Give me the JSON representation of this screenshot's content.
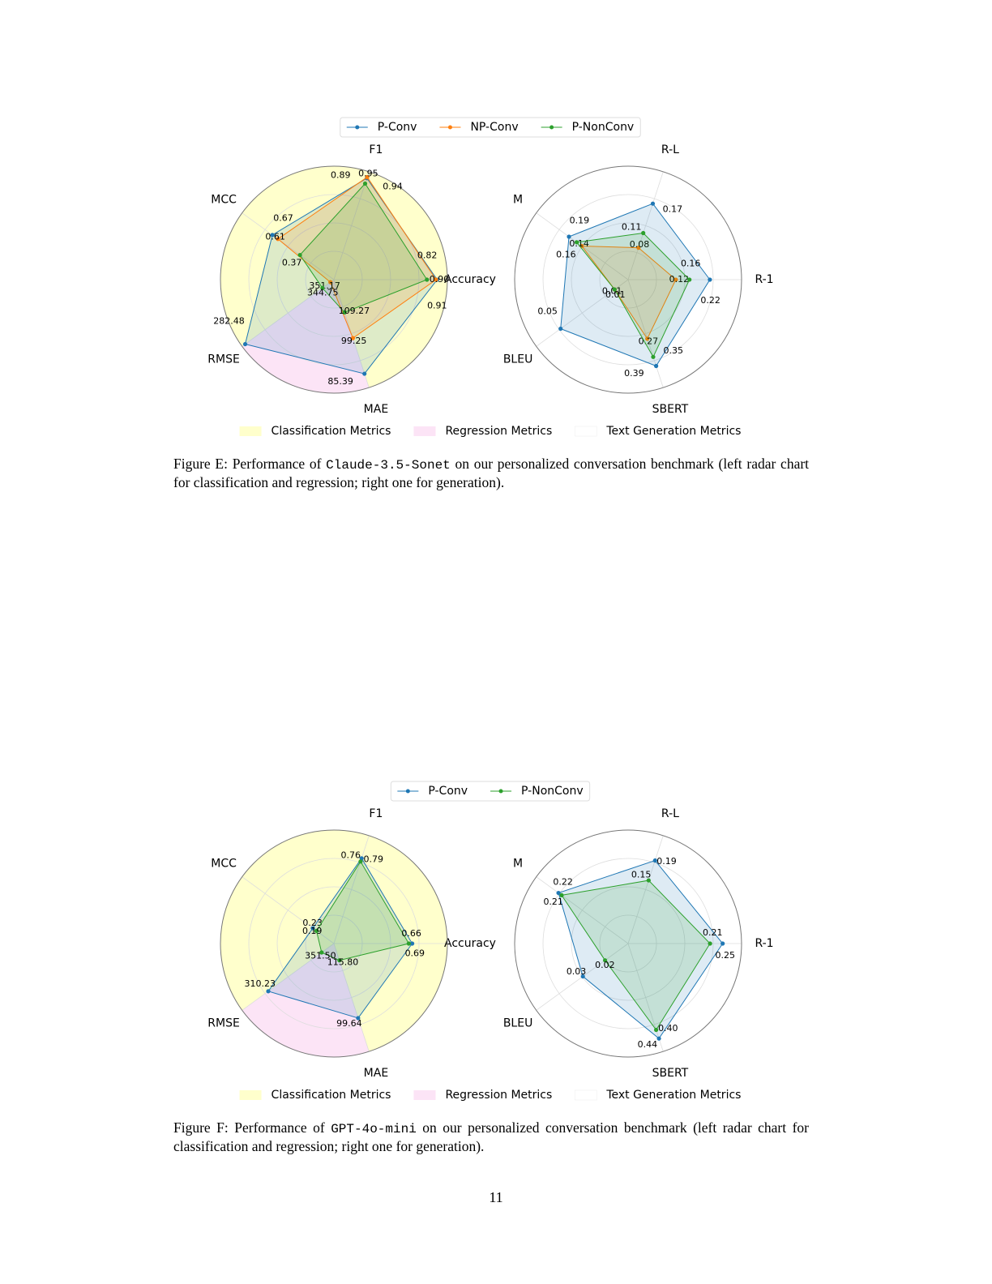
{
  "figures": [
    {
      "series": [
        {
          "name": "P-Conv",
          "color": "#1f77b4"
        },
        {
          "name": "NP-Conv",
          "color": "#ff7f0e"
        },
        {
          "name": "P-NonConv",
          "color": "#2ca02c"
        }
      ],
      "charts": [
        {
          "type": "radar",
          "axes": [
            "Accuracy",
            "F1",
            "MCC",
            "RMSE",
            "MAE"
          ],
          "rlims": [
            [
              0,
              1
            ],
            [
              0,
              1
            ],
            [
              0,
              1
            ],
            [
              354,
              280
            ],
            [
              122,
              80
            ]
          ],
          "series": [
            {
              "values": [
                0.91,
                0.94,
                0.67,
                282.48,
                85.39
              ],
              "value_labels": [
                "0.91",
                "0.94",
                "0.67",
                "282.48",
                "85.39"
              ]
            },
            {
              "values": [
                0.9,
                0.95,
                0.61,
                351.17,
                99.25
              ],
              "value_labels": [
                "0.90",
                "0.95",
                "0.61",
                "351.17",
                "99.25"
              ]
            },
            {
              "values": [
                0.82,
                0.89,
                0.37,
                344.75,
                109.27
              ],
              "value_labels": [
                "0.82",
                "0.89",
                "0.37",
                "344.75",
                "109.27"
              ]
            }
          ]
        },
        {
          "type": "radar",
          "axes": [
            "R-1",
            "R-L",
            "M",
            "BLEU",
            "SBERT"
          ],
          "rlims": [
            [
              -0.02,
              0.313
            ],
            [
              0.015,
              0.235
            ],
            [
              -0.04,
              0.317
            ],
            [
              0,
              0.068
            ],
            [
              0.01,
              0.485
            ]
          ],
          "series": [
            {
              "values": [
                0.22,
                0.17,
                0.19,
                0.05,
                0.39
              ],
              "value_labels": [
                "0.22",
                "0.17",
                "0.19",
                "0.05",
                "0.39"
              ]
            },
            {
              "values": [
                0.12,
                0.08,
                0.14,
                0.01,
                0.27
              ],
              "value_labels": [
                "0.12",
                "0.08",
                "0.14",
                "0.01",
                "0.27"
              ]
            },
            {
              "values": [
                0.16,
                0.11,
                0.16,
                0.01,
                0.35
              ],
              "value_labels": [
                "0.16",
                "0.11",
                "0.16",
                "0.01",
                "0.35"
              ]
            }
          ]
        }
      ],
      "region_legend": [
        {
          "name": "Classification Metrics",
          "color": "#ffffcc"
        },
        {
          "name": "Regression Metrics",
          "color": "#fce4f6"
        },
        {
          "name": "Text Generation Metrics",
          "color": "#ffffff"
        }
      ],
      "caption": {
        "label": "Figure E:",
        "before": "Performance of",
        "model": "Claude-3.5-Sonet",
        "after": "on our personalized conversation benchmark (left radar chart for classification and regression; right one for generation)."
      }
    },
    {
      "series": [
        {
          "name": "P-Conv",
          "color": "#1f77b4"
        },
        {
          "name": "P-NonConv",
          "color": "#2ca02c"
        }
      ],
      "charts": [
        {
          "type": "radar",
          "axes": [
            "Accuracy",
            "F1",
            "MCC",
            "RMSE",
            "MAE"
          ],
          "rlims": [
            [
              0,
              1
            ],
            [
              0,
              1
            ],
            [
              0,
              1
            ],
            [
              361,
              290
            ],
            [
              120.5,
              90.3
            ]
          ],
          "series": [
            {
              "values": [
                0.69,
                0.79,
                0.23,
                310.23,
                99.64
              ],
              "value_labels": [
                "0.69",
                "0.79",
                "0.23",
                "310.23",
                "99.64"
              ]
            },
            {
              "values": [
                0.66,
                0.76,
                0.19,
                351.5,
                115.8
              ],
              "value_labels": [
                "0.66",
                "0.76",
                "0.19",
                "351.50",
                "115.80"
              ]
            }
          ]
        },
        {
          "type": "radar",
          "axes": [
            "R-1",
            "R-L",
            "M",
            "BLEU",
            "SBERT"
          ],
          "rlims": [
            [
              -0.05,
              0.31
            ],
            [
              0.023,
              0.24
            ],
            [
              0,
              0.29
            ],
            [
              0.0096,
              0.051
            ],
            [
              0,
              0.5
            ]
          ],
          "series": [
            {
              "values": [
                0.25,
                0.19,
                0.22,
                0.03,
                0.44
              ],
              "value_labels": [
                "0.25",
                "0.19",
                "0.22",
                "0.03",
                "0.44"
              ]
            },
            {
              "values": [
                0.21,
                0.15,
                0.21,
                0.02,
                0.4
              ],
              "value_labels": [
                "0.21",
                "0.15",
                "0.21",
                "0.02",
                "0.40"
              ]
            }
          ]
        }
      ],
      "region_legend": [
        {
          "name": "Classification Metrics",
          "color": "#ffffcc"
        },
        {
          "name": "Regression Metrics",
          "color": "#fce4f6"
        },
        {
          "name": "Text Generation Metrics",
          "color": "#ffffff"
        }
      ],
      "caption": {
        "label": "Figure F:",
        "before": "Performance of",
        "model": "GPT-4o-mini",
        "after": "on our personalized conversation benchmark (left radar chart for classification and regression; right one for generation)."
      }
    }
  ],
  "page_number": "11"
}
